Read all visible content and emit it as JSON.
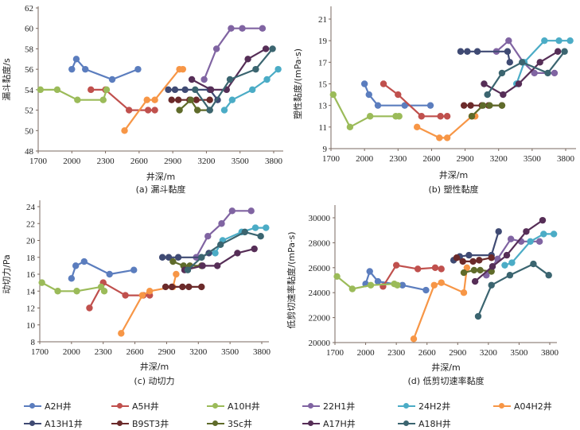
{
  "series_meta": [
    {
      "key": "A2H",
      "name": "A2H井",
      "color": "#5B7DBE"
    },
    {
      "key": "A5H",
      "name": "A5H井",
      "color": "#C0504D"
    },
    {
      "key": "A10H",
      "name": "A10H井",
      "color": "#9BBB59"
    },
    {
      "key": "22H1",
      "name": "22H1井",
      "color": "#8064A2"
    },
    {
      "key": "24H2",
      "name": "24H2井",
      "color": "#4BACC6"
    },
    {
      "key": "A04H2",
      "name": "A04H2井",
      "color": "#F79646"
    },
    {
      "key": "A13H1",
      "name": "A13H1井",
      "color": "#3F4A73"
    },
    {
      "key": "B9ST3",
      "name": "B9ST3井",
      "color": "#6B2A2A"
    },
    {
      "key": "3Sc",
      "name": "3Sc井",
      "color": "#5F6B2A"
    },
    {
      "key": "A17H",
      "name": "A17H井",
      "color": "#562E57"
    },
    {
      "key": "A18H",
      "name": "A18H井",
      "color": "#3B6570"
    }
  ],
  "chart_data": [
    {
      "type": "line",
      "title": "(a) 漏斗黏度",
      "xlabel": "井深/m",
      "ylabel": "漏斗黏度/s",
      "xlim": [
        1700,
        3800
      ],
      "xticks": [
        1700,
        2000,
        2300,
        2600,
        2900,
        3200,
        3500,
        3800
      ],
      "ylim": [
        48,
        62
      ],
      "yticks": [
        48,
        50,
        52,
        54,
        56,
        58,
        60,
        62
      ],
      "series": [
        {
          "name": "A2H井",
          "x": [
            2000,
            2040,
            2120,
            2360,
            2590
          ],
          "y": [
            56,
            57,
            56,
            55,
            56
          ]
        },
        {
          "name": "A5H井",
          "x": [
            2170,
            2300,
            2510,
            2680,
            2740
          ],
          "y": [
            54,
            54,
            52,
            52,
            52
          ]
        },
        {
          "name": "A10H井",
          "x": [
            1720,
            1870,
            2050,
            2280,
            2310
          ],
          "y": [
            54,
            54,
            53,
            53,
            54
          ]
        },
        {
          "name": "22H1井",
          "x": [
            3180,
            3290,
            3420,
            3520,
            3700
          ],
          "y": [
            55,
            58,
            60,
            60,
            60
          ]
        },
        {
          "name": "24H2井",
          "x": [
            3360,
            3430,
            3610,
            3740,
            3840
          ],
          "y": [
            52,
            53,
            54,
            55,
            56
          ]
        },
        {
          "name": "A04H2井",
          "x": [
            2470,
            2670,
            2740,
            2960,
            2990
          ],
          "y": [
            50,
            53,
            53,
            56,
            56
          ]
        },
        {
          "name": "A13H1井",
          "x": [
            2860,
            2920,
            3010,
            3230,
            3300
          ],
          "y": [
            54,
            54,
            54,
            54,
            53
          ]
        },
        {
          "name": "B9ST3井",
          "x": [
            2890,
            2950,
            3050,
            3110,
            3230
          ],
          "y": [
            53,
            53,
            53,
            53,
            53
          ]
        },
        {
          "name": "3Sc井",
          "x": [
            2960,
            3060,
            3120,
            3230
          ],
          "y": [
            52,
            53,
            52,
            52
          ]
        },
        {
          "name": "A17H井",
          "x": [
            3070,
            3240,
            3380,
            3570,
            3730
          ],
          "y": [
            55,
            54,
            54,
            57,
            58
          ]
        },
        {
          "name": "A18H井",
          "x": [
            3100,
            3230,
            3410,
            3640,
            3790
          ],
          "y": [
            54,
            52,
            55,
            56,
            58
          ]
        }
      ]
    },
    {
      "type": "line",
      "title": "(b) 塑性黏度",
      "xlabel": "井深/m",
      "ylabel": "塑性黏度/(mPa·s)",
      "xlim": [
        1700,
        3800
      ],
      "xticks": [
        1700,
        2000,
        2300,
        2600,
        2900,
        3200,
        3500,
        3800
      ],
      "ylim": [
        9,
        21
      ],
      "yticks": [
        9,
        11,
        13,
        15,
        17,
        19,
        21
      ],
      "series": [
        {
          "name": "A2H井",
          "x": [
            2000,
            2040,
            2120,
            2360,
            2590
          ],
          "y": [
            15,
            14,
            13,
            13,
            13
          ]
        },
        {
          "name": "A5H井",
          "x": [
            2170,
            2300,
            2510,
            2680,
            2740
          ],
          "y": [
            15,
            14,
            12,
            12,
            12
          ]
        },
        {
          "name": "A10H井",
          "x": [
            1720,
            1870,
            2050,
            2280,
            2310
          ],
          "y": [
            14,
            11,
            12,
            12,
            12
          ]
        },
        {
          "name": "22H1井",
          "x": [
            3180,
            3290,
            3420,
            3520,
            3700
          ],
          "y": [
            18,
            19,
            17,
            16,
            16
          ]
        },
        {
          "name": "24H2井",
          "x": [
            3360,
            3430,
            3610,
            3740,
            3840
          ],
          "y": [
            15,
            17,
            19,
            19,
            19
          ]
        },
        {
          "name": "A04H2井",
          "x": [
            2470,
            2670,
            2740,
            2960,
            2990
          ],
          "y": [
            11,
            10,
            10,
            12,
            12
          ]
        },
        {
          "name": "A13H1井",
          "x": [
            2860,
            2920,
            3010,
            3280,
            3300
          ],
          "y": [
            18,
            18,
            18,
            18,
            17
          ]
        },
        {
          "name": "B9ST3井",
          "x": [
            2890,
            2950,
            3050,
            3110,
            3230
          ],
          "y": [
            13,
            13,
            13,
            13,
            13
          ]
        },
        {
          "name": "3Sc井",
          "x": [
            2960,
            3060,
            3120,
            3230
          ],
          "y": [
            12,
            13,
            13,
            13
          ]
        },
        {
          "name": "A17H井",
          "x": [
            3070,
            3240,
            3380,
            3570,
            3730
          ],
          "y": [
            15,
            14,
            15,
            17,
            18
          ]
        },
        {
          "name": "A18H井",
          "x": [
            3100,
            3230,
            3410,
            3640,
            3790
          ],
          "y": [
            14,
            16,
            17,
            16,
            18
          ]
        }
      ]
    },
    {
      "type": "line",
      "title": "(c) 动切力",
      "xlabel": "井深/m",
      "ylabel": "动切力/Pa",
      "xlim": [
        1700,
        3800
      ],
      "xticks": [
        1700,
        2000,
        2300,
        2600,
        2900,
        3200,
        3500,
        3800
      ],
      "ylim": [
        8,
        24
      ],
      "yticks": [
        8,
        10,
        12,
        14,
        16,
        18,
        20,
        22,
        24
      ],
      "series": [
        {
          "name": "A2H井",
          "x": [
            2000,
            2040,
            2120,
            2360,
            2590
          ],
          "y": [
            15.5,
            17,
            17.5,
            16,
            16.5
          ]
        },
        {
          "name": "A5H井",
          "x": [
            2170,
            2300,
            2510,
            2680,
            2740
          ],
          "y": [
            12,
            15,
            13.5,
            13.5,
            13.5
          ]
        },
        {
          "name": "A10H井",
          "x": [
            1720,
            1870,
            2050,
            2280,
            2310
          ],
          "y": [
            15,
            14,
            14,
            14.5,
            14
          ]
        },
        {
          "name": "22H1井",
          "x": [
            3180,
            3290,
            3420,
            3520,
            3700
          ],
          "y": [
            18,
            20.5,
            22,
            23.5,
            23.5
          ]
        },
        {
          "name": "24H2井",
          "x": [
            3360,
            3430,
            3610,
            3740,
            3840
          ],
          "y": [
            18.5,
            20,
            21,
            21.5,
            21.5
          ]
        },
        {
          "name": "A04H2井",
          "x": [
            2470,
            2670,
            2740,
            2960,
            2990
          ],
          "y": [
            9,
            13.5,
            14,
            14.5,
            16
          ]
        },
        {
          "name": "A13H1井",
          "x": [
            2860,
            2920,
            3010,
            3230,
            3300
          ],
          "y": [
            18,
            18,
            18,
            18,
            18.5
          ]
        },
        {
          "name": "B9ST3井",
          "x": [
            2890,
            2950,
            3050,
            3110,
            3230
          ],
          "y": [
            14.5,
            14.5,
            14.5,
            14.5,
            14.5
          ]
        },
        {
          "name": "3Sc井",
          "x": [
            2960,
            3060,
            3120,
            3230
          ],
          "y": [
            17.5,
            17,
            17,
            17
          ]
        },
        {
          "name": "A17H井",
          "x": [
            3070,
            3240,
            3380,
            3570,
            3730
          ],
          "y": [
            16.5,
            17,
            17,
            18.5,
            19
          ]
        },
        {
          "name": "A18H井",
          "x": [
            3100,
            3230,
            3410,
            3640,
            3790
          ],
          "y": [
            16.5,
            18,
            19.5,
            21,
            20.5
          ]
        }
      ]
    },
    {
      "type": "line",
      "title": "(d) 低剪切速率黏度",
      "xlabel": "井深/m",
      "ylabel": "低剪切速率黏度/(mPa·s)",
      "xlim": [
        1700,
        3800
      ],
      "xticks": [
        1700,
        2000,
        2300,
        2600,
        2900,
        3200,
        3500,
        3800
      ],
      "ylim": [
        20000,
        30000
      ],
      "yticks": [
        20000,
        22000,
        24000,
        26000,
        28000,
        30000
      ],
      "series": [
        {
          "name": "A2H井",
          "x": [
            2000,
            2040,
            2120,
            2360,
            2590
          ],
          "y": [
            24700,
            25700,
            24900,
            24600,
            24200
          ]
        },
        {
          "name": "A5H井",
          "x": [
            2170,
            2300,
            2510,
            2680,
            2740
          ],
          "y": [
            24500,
            26200,
            25900,
            26000,
            25900
          ]
        },
        {
          "name": "A10H井",
          "x": [
            1720,
            1870,
            2050,
            2280,
            2310
          ],
          "y": [
            25300,
            24300,
            24600,
            24700,
            24600
          ]
        },
        {
          "name": "22H1井",
          "x": [
            3180,
            3290,
            3420,
            3520,
            3700
          ],
          "y": [
            25400,
            26700,
            28300,
            28100,
            28100
          ]
        },
        {
          "name": "24H2井",
          "x": [
            3360,
            3430,
            3610,
            3740,
            3840
          ],
          "y": [
            26200,
            26400,
            28100,
            28700,
            28700
          ]
        },
        {
          "name": "A04H2井",
          "x": [
            2470,
            2670,
            2740,
            2960,
            2990
          ],
          "y": [
            20300,
            24600,
            24800,
            24000,
            26000
          ]
        },
        {
          "name": "A13H1井",
          "x": [
            2860,
            2920,
            3010,
            3230,
            3300
          ],
          "y": [
            26600,
            26900,
            27000,
            27000,
            28900
          ]
        },
        {
          "name": "B9ST3井",
          "x": [
            2890,
            2950,
            3050,
            3110,
            3230
          ],
          "y": [
            26800,
            26500,
            26500,
            26600,
            26800
          ]
        },
        {
          "name": "3Sc井",
          "x": [
            2960,
            3060,
            3120,
            3230
          ],
          "y": [
            25600,
            25800,
            25800,
            25700
          ]
        },
        {
          "name": "A17H井",
          "x": [
            3070,
            3240,
            3380,
            3570,
            3730
          ],
          "y": [
            24900,
            26100,
            27000,
            28900,
            29800
          ]
        },
        {
          "name": "A18H井",
          "x": [
            3100,
            3230,
            3410,
            3640,
            3790
          ],
          "y": [
            22100,
            24600,
            25400,
            26300,
            25400
          ]
        }
      ]
    }
  ],
  "legend": {
    "rows": [
      [
        "A2H井",
        "A5H井",
        "A10H井",
        "22H1井",
        "24H2井",
        "A04H2井"
      ],
      [
        "A13H1井",
        "B9ST3井",
        "3Sc井",
        "A17H井",
        "A18H井"
      ]
    ]
  }
}
